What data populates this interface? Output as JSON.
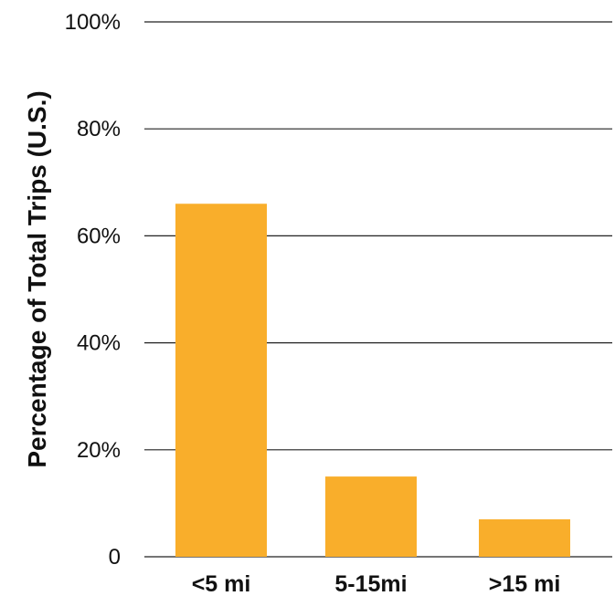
{
  "chart_data": {
    "type": "bar",
    "title": "",
    "xlabel": "",
    "ylabel": "Percentage of Total Trips (U.S.)",
    "categories": [
      "<5 mi",
      "5-15mi",
      ">15 mi"
    ],
    "values": [
      66,
      15,
      7
    ],
    "ylim": [
      0,
      100
    ],
    "yticks": [
      0,
      20,
      40,
      60,
      80,
      100
    ],
    "ytick_labels": [
      "0",
      "20%",
      "40%",
      "60%",
      "80%",
      "100%"
    ],
    "grid": true,
    "bar_color": "#F9AE2B",
    "grid_color": "#222222"
  }
}
